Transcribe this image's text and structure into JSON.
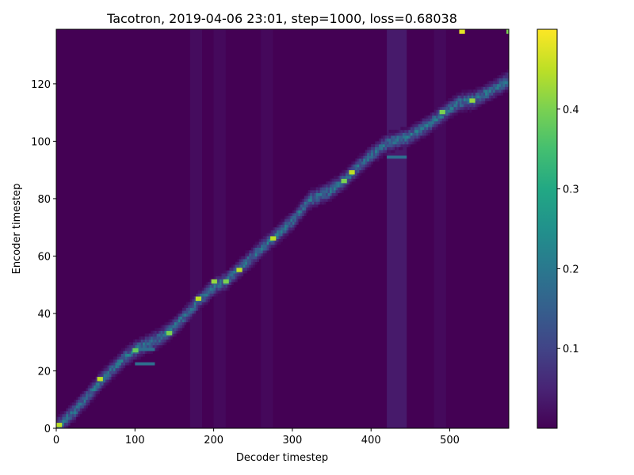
{
  "chart_data": {
    "type": "heatmap",
    "title": "Tacotron, 2019-04-06 23:01, step=1000, loss=0.68038",
    "xlabel": "Decoder timestep",
    "ylabel": "Encoder timestep",
    "xlim": [
      0,
      575
    ],
    "ylim": [
      0,
      139
    ],
    "x_ticks": [
      0,
      100,
      200,
      300,
      400,
      500
    ],
    "y_ticks": [
      0,
      20,
      40,
      60,
      80,
      100,
      120
    ],
    "colormap": "viridis",
    "colorbar": {
      "range": [
        0.0,
        0.5
      ],
      "ticks": [
        0.1,
        0.2,
        0.3,
        0.4
      ]
    },
    "grid": false,
    "alignment_path": [
      {
        "x": 0,
        "y": 0
      },
      {
        "x": 20,
        "y": 5
      },
      {
        "x": 40,
        "y": 11
      },
      {
        "x": 55,
        "y": 16
      },
      {
        "x": 70,
        "y": 20
      },
      {
        "x": 85,
        "y": 24
      },
      {
        "x": 100,
        "y": 27
      },
      {
        "x": 130,
        "y": 31
      },
      {
        "x": 145,
        "y": 34
      },
      {
        "x": 160,
        "y": 38
      },
      {
        "x": 180,
        "y": 44
      },
      {
        "x": 200,
        "y": 49
      },
      {
        "x": 215,
        "y": 51
      },
      {
        "x": 235,
        "y": 56
      },
      {
        "x": 255,
        "y": 61
      },
      {
        "x": 275,
        "y": 66
      },
      {
        "x": 300,
        "y": 72
      },
      {
        "x": 320,
        "y": 79
      },
      {
        "x": 345,
        "y": 82
      },
      {
        "x": 365,
        "y": 86
      },
      {
        "x": 380,
        "y": 90
      },
      {
        "x": 400,
        "y": 95
      },
      {
        "x": 420,
        "y": 99
      },
      {
        "x": 445,
        "y": 101
      },
      {
        "x": 470,
        "y": 105
      },
      {
        "x": 490,
        "y": 109
      },
      {
        "x": 510,
        "y": 113
      },
      {
        "x": 530,
        "y": 114
      },
      {
        "x": 550,
        "y": 117
      },
      {
        "x": 575,
        "y": 121
      }
    ],
    "highlights": [
      {
        "x": 3,
        "y": 1,
        "v": 0.45
      },
      {
        "x": 55,
        "y": 17,
        "v": 0.45
      },
      {
        "x": 100,
        "y": 27,
        "v": 0.38
      },
      {
        "x": 143,
        "y": 33,
        "v": 0.4
      },
      {
        "x": 180,
        "y": 45,
        "v": 0.45
      },
      {
        "x": 200,
        "y": 51,
        "v": 0.42
      },
      {
        "x": 215,
        "y": 51,
        "v": 0.4
      },
      {
        "x": 232,
        "y": 55,
        "v": 0.45
      },
      {
        "x": 275,
        "y": 66,
        "v": 0.45
      },
      {
        "x": 365,
        "y": 86,
        "v": 0.4
      },
      {
        "x": 375,
        "y": 89,
        "v": 0.45
      },
      {
        "x": 490,
        "y": 110,
        "v": 0.4
      },
      {
        "x": 528,
        "y": 114,
        "v": 0.42
      },
      {
        "x": 515,
        "y": 138,
        "v": 0.48
      },
      {
        "x": 575,
        "y": 138,
        "v": 0.4
      }
    ],
    "side_branches": [
      {
        "x0": 100,
        "x1": 125,
        "y": 22
      },
      {
        "x0": 100,
        "x1": 125,
        "y": 27
      },
      {
        "x0": 420,
        "x1": 445,
        "y": 94
      }
    ]
  }
}
